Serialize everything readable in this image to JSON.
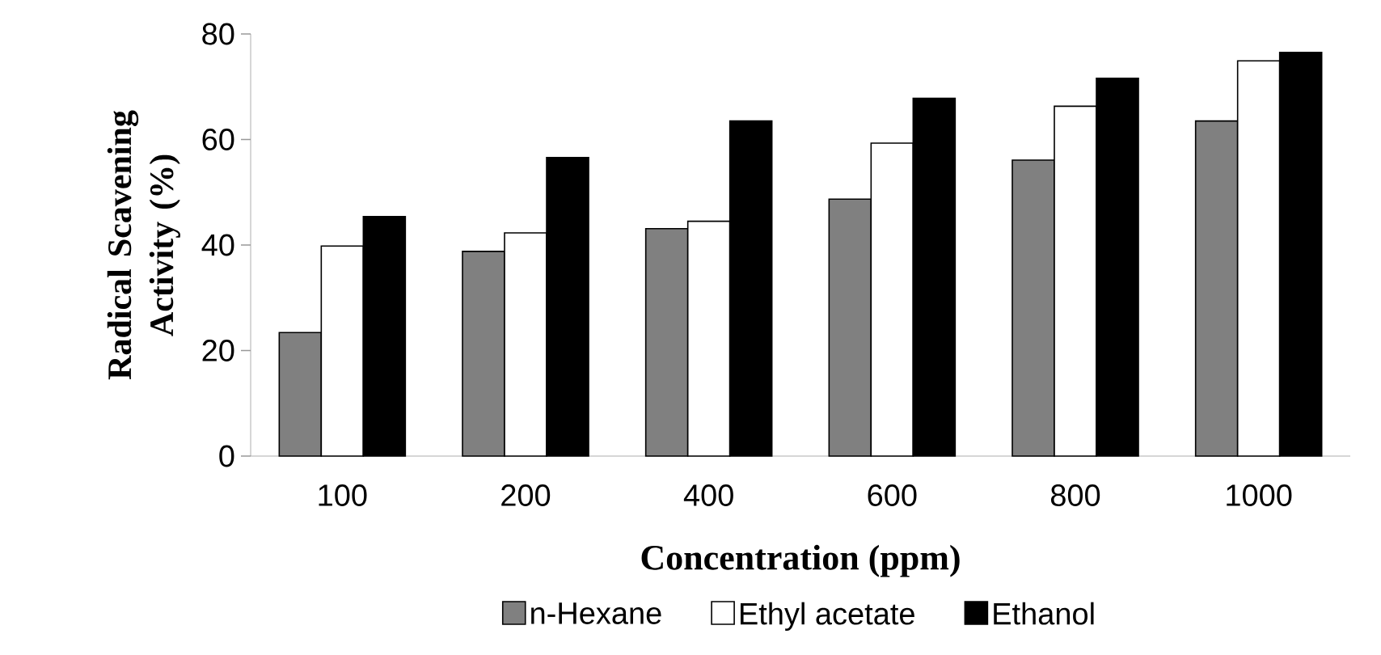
{
  "chart_data": {
    "type": "bar",
    "xlabel": "Concentration (ppm)",
    "ylabel": "Radical Scavening Activity (%)",
    "categories": [
      "100",
      "200",
      "400",
      "600",
      "800",
      "1000"
    ],
    "series": [
      {
        "name": "n-Hexane",
        "color": "#808080",
        "values": [
          23.4,
          38.8,
          43.1,
          48.7,
          56.1,
          63.5
        ]
      },
      {
        "name": "Ethyl acetate",
        "color": "#ffffff",
        "values": [
          39.8,
          42.3,
          44.5,
          59.3,
          66.3,
          74.9
        ]
      },
      {
        "name": "Ethanol",
        "color": "#000000",
        "values": [
          45.4,
          56.6,
          63.5,
          67.8,
          71.6,
          76.5
        ]
      }
    ],
    "ylim": [
      0,
      80
    ],
    "yticks": [
      0,
      20,
      40,
      60,
      80
    ],
    "grid": false,
    "legend": "bottom"
  }
}
